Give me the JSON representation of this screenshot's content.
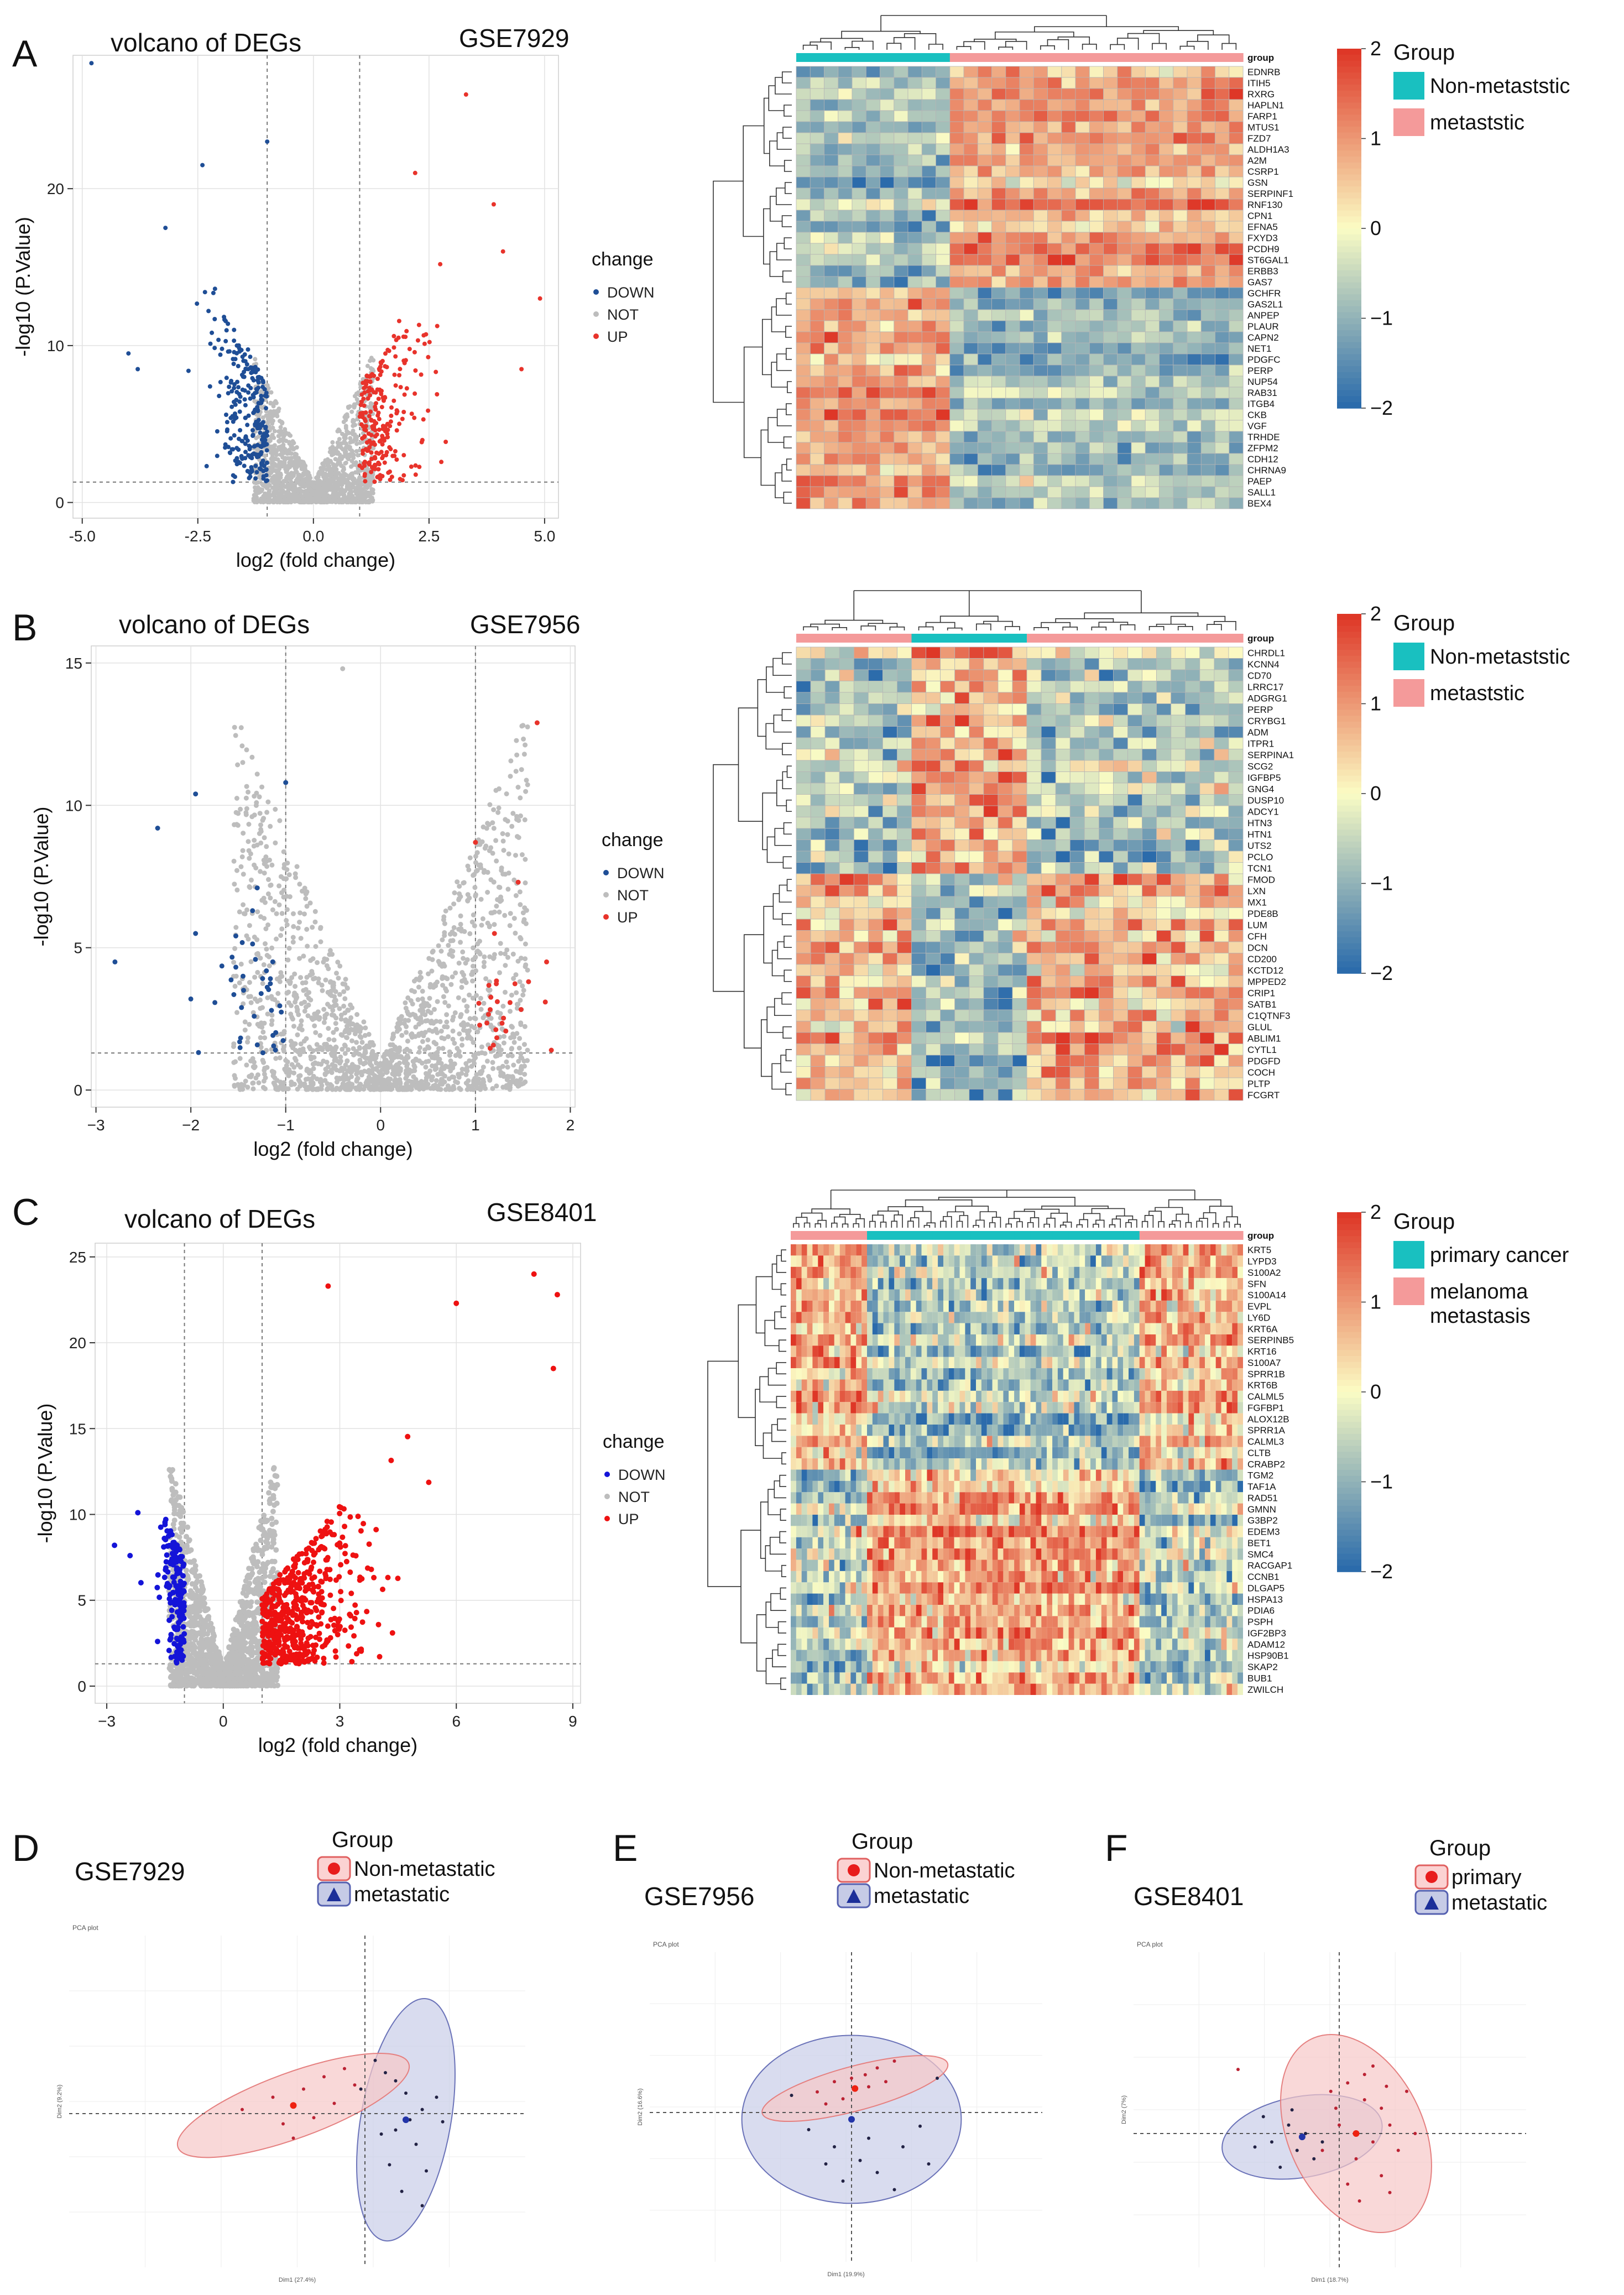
{
  "panels": [
    {
      "letter": "A",
      "dataset": "GSE7929",
      "volcano_title": "volcano of DEGs"
    },
    {
      "letter": "B",
      "dataset": "GSE7956",
      "volcano_title": "volcano of DEGs"
    },
    {
      "letter": "C",
      "dataset": "GSE8401",
      "volcano_title": "volcano of DEGs"
    },
    {
      "letter": "D",
      "dataset": "GSE7929"
    },
    {
      "letter": "E",
      "dataset": "GSE7956"
    },
    {
      "letter": "F",
      "dataset": "GSE8401"
    }
  ],
  "colors": {
    "down": "#1f4e96",
    "not": "#bdbdbd",
    "up": "#e8332b",
    "down_c": "#1414d8",
    "up_c": "#ee1111",
    "group_teal": "#19c0c0",
    "group_pink": "#f49a9a",
    "heat_low": "#2b6bab",
    "heat_mid": "#fbfcc4",
    "heat_high": "#de3727",
    "pca_red_fill": "#f6c8c8",
    "pca_blue_fill": "#c9cde8"
  },
  "chart_data": [
    {
      "type": "scatter",
      "subtype": "volcano",
      "panel": "A",
      "title": "volcano of DEGs",
      "dataset": "GSE7929",
      "xlabel": "log2 (fold change)",
      "ylabel": "-log10 (P.Value)",
      "xlim": [
        -5.2,
        5.3
      ],
      "ylim": [
        -1.0,
        28.5
      ],
      "xticks": [
        -5.0,
        -2.5,
        0.0,
        2.5,
        5.0
      ],
      "xtick_labels": [
        "-5.0",
        "-2.5",
        "0.0",
        "2.5",
        "5.0"
      ],
      "yticks": [
        0,
        10,
        20
      ],
      "ytick_labels": [
        "0",
        "10",
        "20"
      ],
      "fc_cutoff": 1.0,
      "p_line": 1.3,
      "legend": {
        "title": "change",
        "entries": [
          "DOWN",
          "NOT",
          "UP"
        ]
      },
      "highlight_points": [
        {
          "x": -4.8,
          "y": 28,
          "group": "DOWN"
        },
        {
          "x": -1.0,
          "y": 23,
          "group": "DOWN"
        },
        {
          "x": -4.0,
          "y": 9.5,
          "group": "DOWN"
        },
        {
          "x": -3.8,
          "y": 8.5,
          "group": "DOWN"
        },
        {
          "x": -3.2,
          "y": 17.5,
          "group": "DOWN"
        },
        {
          "x": -2.4,
          "y": 21.5,
          "group": "DOWN"
        },
        {
          "x": 3.3,
          "y": 26,
          "group": "UP"
        },
        {
          "x": 4.9,
          "y": 13,
          "group": "UP"
        },
        {
          "x": 4.1,
          "y": 16,
          "group": "UP"
        },
        {
          "x": 3.9,
          "y": 19,
          "group": "UP"
        },
        {
          "x": 2.2,
          "y": 21,
          "group": "UP"
        },
        {
          "x": 4.5,
          "y": 8.5,
          "group": "UP"
        }
      ],
      "group_counts": {
        "DOWN": 260,
        "NOT": 1500,
        "UP": 240
      }
    },
    {
      "type": "scatter",
      "subtype": "volcano",
      "panel": "B",
      "title": "volcano of DEGs",
      "dataset": "GSE7956",
      "xlabel": "log2 (fold change)",
      "ylabel": "-log10 (P.Value)",
      "xlim": [
        -3.05,
        2.05
      ],
      "ylim": [
        -0.6,
        15.6
      ],
      "xticks": [
        -3,
        -2,
        -1,
        0,
        1,
        2
      ],
      "xtick_labels": [
        "−3",
        "−2",
        "−1",
        "0",
        "1",
        "2"
      ],
      "yticks": [
        0,
        5,
        10,
        15
      ],
      "ytick_labels": [
        "0",
        "5",
        "10",
        "15"
      ],
      "fc_cutoff": 1.0,
      "p_line": 1.3,
      "legend": {
        "title": "change",
        "entries": [
          "DOWN",
          "NOT",
          "UP"
        ]
      },
      "highlight_points": [
        {
          "x": -1.95,
          "y": 10.4,
          "group": "DOWN"
        },
        {
          "x": -2.35,
          "y": 9.2,
          "group": "DOWN"
        },
        {
          "x": -2.8,
          "y": 4.5,
          "group": "DOWN"
        },
        {
          "x": -1.0,
          "y": 10.8,
          "group": "DOWN"
        },
        {
          "x": -1.95,
          "y": 5.5,
          "group": "DOWN"
        },
        {
          "x": -1.35,
          "y": 6.3,
          "group": "DOWN"
        },
        {
          "x": -1.3,
          "y": 7.1,
          "group": "DOWN"
        },
        {
          "x": -2.0,
          "y": 3.2,
          "group": "DOWN"
        },
        {
          "x": -1.45,
          "y": 4.0,
          "group": "DOWN"
        },
        {
          "x": -1.15,
          "y": 2.8,
          "group": "DOWN"
        },
        {
          "x": 1.65,
          "y": 12.9,
          "group": "UP"
        },
        {
          "x": 1.0,
          "y": 8.7,
          "group": "UP"
        },
        {
          "x": 1.45,
          "y": 7.3,
          "group": "UP"
        },
        {
          "x": 1.2,
          "y": 5.5,
          "group": "UP"
        },
        {
          "x": 1.75,
          "y": 4.5,
          "group": "UP"
        },
        {
          "x": 1.8,
          "y": 1.4,
          "group": "UP"
        },
        {
          "x": -0.4,
          "y": 14.8,
          "group": "NOT"
        }
      ],
      "group_counts": {
        "DOWN": 34,
        "NOT": 1700,
        "UP": 22
      }
    },
    {
      "type": "scatter",
      "subtype": "volcano",
      "panel": "C",
      "title": "volcano of DEGs",
      "dataset": "GSE8401",
      "xlabel": "log2 (fold change)",
      "ylabel": "-log10 (P.Value)",
      "xlim": [
        -3.3,
        9.2
      ],
      "ylim": [
        -1.0,
        25.8
      ],
      "xticks": [
        -3,
        0,
        3,
        6,
        9
      ],
      "xtick_labels": [
        "−3",
        "0",
        "3",
        "6",
        "9"
      ],
      "yticks": [
        0,
        5,
        10,
        15,
        20,
        25
      ],
      "ytick_labels": [
        "0",
        "5",
        "10",
        "15",
        "20",
        "25"
      ],
      "fc_cutoff": 1.0,
      "p_line": 1.3,
      "legend": {
        "title": "change",
        "entries": [
          "DOWN",
          "NOT",
          "UP"
        ]
      },
      "highlight_points": [
        {
          "x": 8.6,
          "y": 22.8,
          "group": "UP"
        },
        {
          "x": 8.0,
          "y": 24,
          "group": "UP"
        },
        {
          "x": 8.5,
          "y": 18.5,
          "group": "UP"
        },
        {
          "x": 6.0,
          "y": 22.3,
          "group": "UP"
        },
        {
          "x": 2.7,
          "y": 23.3,
          "group": "UP"
        },
        {
          "x": -2.8,
          "y": 8.2,
          "group": "DOWN"
        },
        {
          "x": -2.2,
          "y": 10.1,
          "group": "DOWN"
        },
        {
          "x": -2.4,
          "y": 7.6,
          "group": "DOWN"
        }
      ],
      "group_counts": {
        "DOWN": 170,
        "NOT": 1500,
        "UP": 520
      }
    },
    {
      "type": "heatmap",
      "panel": "A",
      "genes": [
        "EDNRB",
        "ITIH5",
        "RXRG",
        "HAPLN1",
        "FARP1",
        "MTUS1",
        "FZD7",
        "ALDH1A3",
        "A2M",
        "CSRP1",
        "GSN",
        "SERPINF1",
        "RNF130",
        "CPN1",
        "EFNA5",
        "FXYD3",
        "PCDH9",
        "ST6GAL1",
        "ERBB3",
        "GAS7",
        "GCHFR",
        "GAS2L1",
        "ANPEP",
        "PLAUR",
        "CAPN2",
        "NET1",
        "PDGFC",
        "PERP",
        "NUP54",
        "RAB31",
        "ITGB4",
        "CKB",
        "VGF",
        "TRHDE",
        "ZFPM2",
        "CDH12",
        "CHRNA9",
        "PAEP",
        "SALL1",
        "BEX4"
      ],
      "annotation_label": "group",
      "n_up": 20,
      "columns": [
        {
          "group": "Non-metaststic",
          "n": 11
        },
        {
          "group": "metaststic",
          "n": 21
        }
      ],
      "scale": {
        "min": -2,
        "max": 2,
        "ticks": [
          "2",
          "1",
          "0",
          "−1",
          "−2"
        ]
      },
      "legend": {
        "title": "Group",
        "entries": [
          "Non-metaststic",
          "metaststic"
        ]
      }
    },
    {
      "type": "heatmap",
      "panel": "B",
      "genes": [
        "CHRDL1",
        "KCNN4",
        "CD70",
        "LRRC17",
        "ADGRG1",
        "PERP",
        "CRYBG1",
        "ADM",
        "ITPR1",
        "SERPINA1",
        "SCG2",
        "IGFBP5",
        "GNG4",
        "DUSP10",
        "ADCY1",
        "HTN3",
        "HTN1",
        "UTS2",
        "PCLO",
        "TCN1",
        "FMOD",
        "LXN",
        "MX1",
        "PDE8B",
        "LUM",
        "CFH",
        "DCN",
        "CD200",
        "KCTD12",
        "MPPED2",
        "CRIP1",
        "SATB1",
        "C1QTNF3",
        "GLUL",
        "ABLIM1",
        "CYTL1",
        "PDGFD",
        "COCH",
        "PLTP",
        "FCGRT"
      ],
      "annotation_label": "group",
      "n_up": 20,
      "columns": [
        {
          "group": "metaststic",
          "n": 8
        },
        {
          "group": "Non-metaststic",
          "n": 8
        },
        {
          "group": "metaststic",
          "n": 15
        }
      ],
      "scale": {
        "min": -2,
        "max": 2,
        "ticks": [
          "2",
          "1",
          "0",
          "−1",
          "−2"
        ]
      },
      "legend": {
        "title": "Group",
        "entries": [
          "Non-metaststic",
          "metaststic"
        ]
      }
    },
    {
      "type": "heatmap",
      "panel": "C",
      "genes": [
        "KRT5",
        "LYPD3",
        "S100A2",
        "SFN",
        "S100A14",
        "EVPL",
        "LY6D",
        "KRT6A",
        "SERPINB5",
        "KRT16",
        "S100A7",
        "SPRR1B",
        "KRT6B",
        "CALML5",
        "FGFBP1",
        "ALOX12B",
        "SPRR1A",
        "CALML3",
        "CLTB",
        "CRABP2",
        "TGM2",
        "TAF1A",
        "RAD51",
        "GMNN",
        "G3BP2",
        "EDEM3",
        "BET1",
        "SMC4",
        "RACGAP1",
        "CCNB1",
        "DLGAP5",
        "HSPA13",
        "PDIA6",
        "PSPH",
        "IGF2BP3",
        "ADAM12",
        "HSP90B1",
        "SKAP2",
        "BUB1",
        "ZWILCH"
      ],
      "annotation_label": "group",
      "n_up": 20,
      "columns": [
        {
          "group": "melanoma metastasis",
          "n": 14
        },
        {
          "group": "primary cancer",
          "n": 50
        },
        {
          "group": "melanoma metastasis",
          "n": 19
        }
      ],
      "scale": {
        "min": -2,
        "max": 2,
        "ticks": [
          "2",
          "1",
          "0",
          "−1",
          "−2"
        ]
      },
      "legend": {
        "title": "Group",
        "entries": [
          "primary cancer",
          "melanoma metastasis"
        ]
      }
    },
    {
      "type": "scatter",
      "subtype": "pca",
      "panel": "D",
      "dataset": "GSE7929",
      "plot_title": "PCA plot",
      "xlabel": "Dim1 (27.4%)",
      "ylabel": "Dim2 (9.2%)",
      "legend": {
        "title": "Group",
        "entries": [
          "Non-metastatic",
          "metastatic"
        ]
      },
      "groups": [
        {
          "name": "Non-metastatic",
          "center": [
            -35,
            4
          ],
          "ellipse": {
            "rx": 60,
            "ry": 16,
            "rotate": -20
          },
          "points": [
            [
              -60,
              2
            ],
            [
              -45,
              8
            ],
            [
              -40,
              -5
            ],
            [
              -30,
              12
            ],
            [
              -20,
              18
            ],
            [
              -10,
              22
            ],
            [
              -25,
              -2
            ],
            [
              -15,
              5
            ],
            [
              -35,
              -12
            ],
            [
              -5,
              14
            ]
          ]
        },
        {
          "name": "metastatic",
          "center": [
            20,
            -3
          ],
          "ellipse": {
            "rx": 22,
            "ry": 60,
            "rotate": 10
          },
          "points": [
            [
              5,
              26
            ],
            [
              10,
              20
            ],
            [
              15,
              16
            ],
            [
              20,
              10
            ],
            [
              22,
              -3
            ],
            [
              28,
              2
            ],
            [
              15,
              -8
            ],
            [
              25,
              -15
            ],
            [
              12,
              -25
            ],
            [
              30,
              -28
            ],
            [
              8,
              -10
            ],
            [
              35,
              8
            ],
            [
              18,
              -38
            ],
            [
              28,
              -45
            ],
            [
              -2,
              12
            ],
            [
              38,
              -4
            ]
          ]
        }
      ]
    },
    {
      "type": "scatter",
      "subtype": "pca",
      "panel": "E",
      "dataset": "GSE7956",
      "plot_title": "PCA plot",
      "xlabel": "Dim1 (19.9%)",
      "ylabel": "Dim2 (16.6%)",
      "legend": {
        "title": "Group",
        "entries": [
          "Non-metastatic",
          "metastatic"
        ]
      },
      "groups": [
        {
          "name": "Non-metastatic",
          "center": [
            2,
            14
          ],
          "ellipse": {
            "rx": 56,
            "ry": 13,
            "rotate": -15
          },
          "points": [
            [
              -20,
              12
            ],
            [
              -10,
              18
            ],
            [
              0,
              20
            ],
            [
              8,
              22
            ],
            [
              15,
              26
            ],
            [
              25,
              30
            ],
            [
              -5,
              8
            ],
            [
              10,
              15
            ],
            [
              -15,
              5
            ],
            [
              20,
              18
            ]
          ]
        },
        {
          "name": "metastatic",
          "center": [
            0,
            -4
          ],
          "ellipse": {
            "rx": 64,
            "ry": 49,
            "rotate": 0
          },
          "points": [
            [
              -25,
              -10
            ],
            [
              -10,
              -20
            ],
            [
              5,
              -28
            ],
            [
              15,
              -35
            ],
            [
              -5,
              -40
            ],
            [
              30,
              -20
            ],
            [
              40,
              -8
            ],
            [
              -35,
              10
            ],
            [
              10,
              -15
            ],
            [
              25,
              -45
            ],
            [
              -15,
              -30
            ],
            [
              50,
              20
            ],
            [
              45,
              -30
            ]
          ]
        }
      ]
    },
    {
      "type": "scatter",
      "subtype": "pca",
      "panel": "F",
      "dataset": "GSE8401",
      "plot_title": "PCA plot",
      "xlabel": "Dim1 (18.7%)",
      "ylabel": "Dim2 (7%)",
      "legend": {
        "title": "Group",
        "entries": [
          "primary",
          "metastatic"
        ]
      },
      "groups": [
        {
          "name": "primary",
          "center": [
            10,
            0
          ],
          "ellipse": {
            "rx": 40,
            "ry": 62,
            "rotate": -25
          },
          "points": [
            [
              -5,
              25
            ],
            [
              5,
              30
            ],
            [
              15,
              20
            ],
            [
              25,
              15
            ],
            [
              30,
              5
            ],
            [
              20,
              -5
            ],
            [
              10,
              -15
            ],
            [
              35,
              -10
            ],
            [
              0,
              5
            ],
            [
              40,
              25
            ],
            [
              15,
              35
            ],
            [
              25,
              -25
            ],
            [
              5,
              -30
            ],
            [
              30,
              -35
            ],
            [
              -10,
              -10
            ],
            [
              20,
              40
            ],
            [
              45,
              0
            ],
            [
              -2,
              15
            ],
            [
              28,
              28
            ],
            [
              12,
              -40
            ],
            [
              -60,
              38
            ]
          ]
        },
        {
          "name": "metastatic",
          "center": [
            -22,
            -2
          ],
          "ellipse": {
            "rx": 48,
            "ry": 24,
            "rotate": -10
          },
          "points": [
            [
              -40,
              -5
            ],
            [
              -30,
              5
            ],
            [
              -25,
              -10
            ],
            [
              -15,
              -15
            ],
            [
              -35,
              -20
            ],
            [
              -50,
              -8
            ],
            [
              -20,
              0
            ],
            [
              -10,
              -5
            ],
            [
              -28,
              14
            ],
            [
              -45,
              10
            ]
          ]
        }
      ]
    }
  ]
}
